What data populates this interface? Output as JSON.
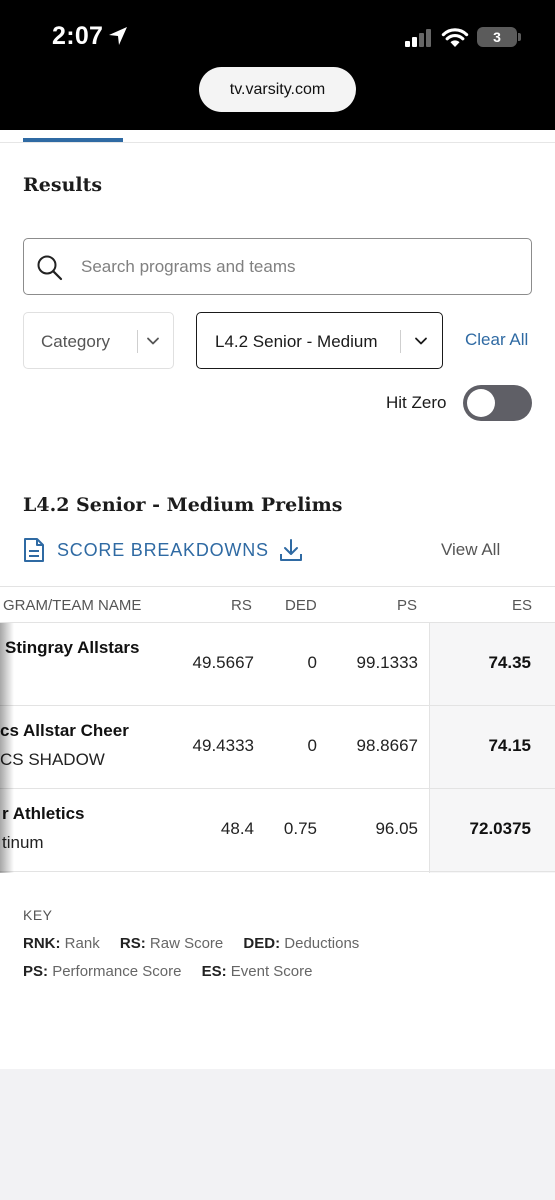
{
  "status_bar": {
    "time": "2:07",
    "battery": "3"
  },
  "browser": {
    "url": "tv.varsity.com"
  },
  "results": {
    "title": "Results"
  },
  "search": {
    "placeholder": "Search programs and teams"
  },
  "filters": {
    "category_label": "Category",
    "division_value": "L4.2 Senior - Medium",
    "clear_all": "Clear All",
    "hit_zero_label": "Hit Zero",
    "hit_zero_on": false
  },
  "section": {
    "title": "L4.2 Senior - Medium Prelims",
    "score_breakdowns": "SCORE BREAKDOWNS",
    "view_all": "View All"
  },
  "table": {
    "headers": {
      "program": "GRAM/TEAM NAME",
      "rs": "RS",
      "ded": "DED",
      "ps": "PS",
      "es": "ES"
    },
    "rows": [
      {
        "program": "Stingray Allstars",
        "team": "",
        "rs": "49.5667",
        "ded": "0",
        "ps": "99.1333",
        "es": "74.35"
      },
      {
        "program": "cs Allstar Cheer",
        "team": "CS SHADOW",
        "rs": "49.4333",
        "ded": "0",
        "ps": "98.8667",
        "es": "74.15"
      },
      {
        "program": "r Athletics",
        "team": "tinum",
        "rs": "48.4",
        "ded": "0.75",
        "ps": "96.05",
        "es": "72.0375"
      }
    ]
  },
  "key": {
    "title": "KEY",
    "items": [
      {
        "abbr": "RNK:",
        "desc": "Rank"
      },
      {
        "abbr": "RS:",
        "desc": "Raw Score"
      },
      {
        "abbr": "DED:",
        "desc": "Deductions"
      },
      {
        "abbr": "PS:",
        "desc": "Performance Score"
      },
      {
        "abbr": "ES:",
        "desc": "Event Score"
      }
    ]
  }
}
